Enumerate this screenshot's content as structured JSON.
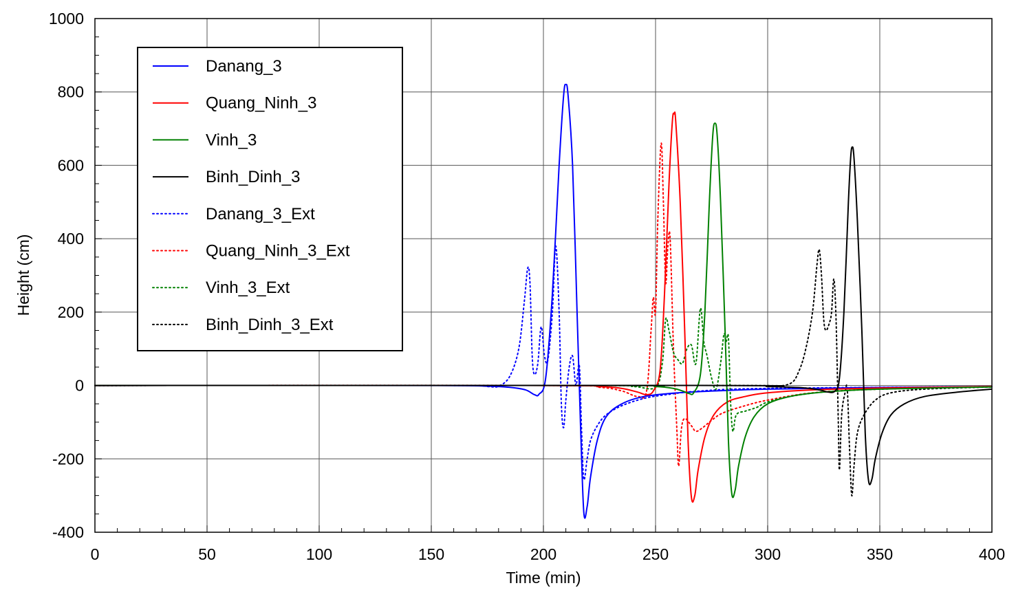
{
  "chart_data": {
    "type": "line",
    "xlabel": "Time (min)",
    "ylabel": "Height (cm)",
    "xlim": [
      0,
      400
    ],
    "ylim": [
      -400,
      1000
    ],
    "xticks": [
      "0",
      "50",
      "100",
      "150",
      "200",
      "250",
      "300",
      "350",
      "400"
    ],
    "yticks": [
      "-400",
      "-200",
      "0",
      "200",
      "400",
      "600",
      "800",
      "1000"
    ],
    "grid": true,
    "legend_position": "top-left",
    "series": [
      {
        "name": "Danang_3",
        "color": "#0000ff",
        "style": "solid",
        "points": [
          [
            0,
            0
          ],
          [
            150,
            0
          ],
          [
            175,
            -2
          ],
          [
            185,
            -5
          ],
          [
            192,
            -12
          ],
          [
            196,
            -25
          ],
          [
            198,
            -24
          ],
          [
            201,
            20
          ],
          [
            204,
            250
          ],
          [
            207,
            600
          ],
          [
            209,
            790
          ],
          [
            210,
            820
          ],
          [
            211,
            790
          ],
          [
            213,
            600
          ],
          [
            215,
            200
          ],
          [
            216.5,
            -100
          ],
          [
            218,
            -345
          ],
          [
            219.5,
            -330
          ],
          [
            221,
            -250
          ],
          [
            224,
            -150
          ],
          [
            228,
            -85
          ],
          [
            235,
            -50
          ],
          [
            245,
            -30
          ],
          [
            260,
            -20
          ],
          [
            280,
            -14
          ],
          [
            300,
            -10
          ],
          [
            340,
            -6
          ],
          [
            400,
            -3
          ]
        ]
      },
      {
        "name": "Quang_Ninh_3",
        "color": "#ff0000",
        "style": "solid",
        "points": [
          [
            0,
            0
          ],
          [
            200,
            0
          ],
          [
            225,
            -3
          ],
          [
            235,
            -8
          ],
          [
            242,
            -18
          ],
          [
            246,
            -25
          ],
          [
            249,
            -15
          ],
          [
            252,
            40
          ],
          [
            254,
            250
          ],
          [
            256,
            550
          ],
          [
            257.5,
            720
          ],
          [
            258.3,
            740
          ],
          [
            259,
            720
          ],
          [
            261,
            500
          ],
          [
            263,
            150
          ],
          [
            264.5,
            -150
          ],
          [
            266,
            -305
          ],
          [
            267.5,
            -300
          ],
          [
            269,
            -230
          ],
          [
            272,
            -140
          ],
          [
            276,
            -80
          ],
          [
            282,
            -45
          ],
          [
            290,
            -30
          ],
          [
            300,
            -20
          ],
          [
            320,
            -12
          ],
          [
            350,
            -7
          ],
          [
            400,
            -3
          ]
        ]
      },
      {
        "name": "Vinh_3",
        "color": "#008000",
        "style": "solid",
        "points": [
          [
            0,
            0
          ],
          [
            230,
            0
          ],
          [
            250,
            -3
          ],
          [
            258,
            -8
          ],
          [
            262,
            -15
          ],
          [
            265,
            -22
          ],
          [
            267,
            -20
          ],
          [
            270,
            30
          ],
          [
            272,
            200
          ],
          [
            274,
            500
          ],
          [
            275.5,
            680
          ],
          [
            276.5,
            715
          ],
          [
            277.5,
            680
          ],
          [
            279,
            500
          ],
          [
            281,
            150
          ],
          [
            282.5,
            -150
          ],
          [
            284,
            -295
          ],
          [
            285.5,
            -285
          ],
          [
            287,
            -220
          ],
          [
            290,
            -140
          ],
          [
            294,
            -85
          ],
          [
            300,
            -50
          ],
          [
            310,
            -30
          ],
          [
            325,
            -18
          ],
          [
            350,
            -10
          ],
          [
            400,
            -4
          ]
        ]
      },
      {
        "name": "Binh_Dinh_3",
        "color": "#000000",
        "style": "solid",
        "points": [
          [
            0,
            0
          ],
          [
            280,
            0
          ],
          [
            300,
            -3
          ],
          [
            315,
            -6
          ],
          [
            323,
            -12
          ],
          [
            327,
            -18
          ],
          [
            330,
            -15
          ],
          [
            332,
            20
          ],
          [
            334,
            200
          ],
          [
            336,
            500
          ],
          [
            337,
            620
          ],
          [
            337.7,
            650
          ],
          [
            338.5,
            620
          ],
          [
            340,
            450
          ],
          [
            342,
            150
          ],
          [
            343.5,
            -130
          ],
          [
            345,
            -260
          ],
          [
            346.5,
            -255
          ],
          [
            348,
            -200
          ],
          [
            351,
            -130
          ],
          [
            355,
            -80
          ],
          [
            361,
            -50
          ],
          [
            370,
            -30
          ],
          [
            385,
            -18
          ],
          [
            400,
            -10
          ]
        ]
      },
      {
        "name": "Danang_3_Ext",
        "color": "#0000ff",
        "style": "dotted",
        "points": [
          [
            0,
            0
          ],
          [
            160,
            0
          ],
          [
            175,
            -3
          ],
          [
            180,
            -2
          ],
          [
            185,
            25
          ],
          [
            189,
            100
          ],
          [
            191.5,
            230
          ],
          [
            193,
            320
          ],
          [
            194,
            280
          ],
          [
            195,
            80
          ],
          [
            196,
            30
          ],
          [
            197.5,
            60
          ],
          [
            199,
            160
          ],
          [
            200.5,
            80
          ],
          [
            202,
            70
          ],
          [
            204,
            200
          ],
          [
            205.5,
            380
          ],
          [
            207,
            200
          ],
          [
            208,
            -50
          ],
          [
            209,
            -115
          ],
          [
            210,
            -40
          ],
          [
            211.5,
            50
          ],
          [
            213,
            80
          ],
          [
            214.5,
            0
          ],
          [
            216,
            55
          ],
          [
            217,
            -120
          ],
          [
            218,
            -255
          ],
          [
            219.5,
            -200
          ],
          [
            221,
            -150
          ],
          [
            224,
            -110
          ],
          [
            228,
            -80
          ],
          [
            235,
            -55
          ],
          [
            245,
            -35
          ],
          [
            255,
            -25
          ],
          [
            270,
            -15
          ],
          [
            300,
            -8
          ],
          [
            400,
            -3
          ]
        ]
      },
      {
        "name": "Quang_Ninh_3_Ext",
        "color": "#ff0000",
        "style": "dotted",
        "points": [
          [
            0,
            0
          ],
          [
            200,
            0
          ],
          [
            225,
            -5
          ],
          [
            235,
            -15
          ],
          [
            242,
            -30
          ],
          [
            246,
            -15
          ],
          [
            248,
            150
          ],
          [
            249,
            240
          ],
          [
            250,
            200
          ],
          [
            251,
            450
          ],
          [
            252.5,
            660
          ],
          [
            253.5,
            500
          ],
          [
            254.5,
            280
          ],
          [
            255.5,
            380
          ],
          [
            256.5,
            400
          ],
          [
            258,
            100
          ],
          [
            259.5,
            -120
          ],
          [
            260.3,
            -220
          ],
          [
            261.5,
            -120
          ],
          [
            263,
            -90
          ],
          [
            266,
            -110
          ],
          [
            268,
            -125
          ],
          [
            271,
            -115
          ],
          [
            275,
            -95
          ],
          [
            280,
            -75
          ],
          [
            290,
            -55
          ],
          [
            300,
            -40
          ],
          [
            320,
            -20
          ],
          [
            350,
            -10
          ],
          [
            400,
            -4
          ]
        ]
      },
      {
        "name": "Vinh_3_Ext",
        "color": "#008000",
        "style": "dotted",
        "points": [
          [
            0,
            0
          ],
          [
            220,
            0
          ],
          [
            240,
            -3
          ],
          [
            250,
            -5
          ],
          [
            253,
            60
          ],
          [
            254.5,
            180
          ],
          [
            256,
            150
          ],
          [
            258,
            90
          ],
          [
            260,
            70
          ],
          [
            262,
            60
          ],
          [
            264,
            100
          ],
          [
            266,
            110
          ],
          [
            268,
            60
          ],
          [
            270,
            210
          ],
          [
            271.5,
            120
          ],
          [
            273,
            80
          ],
          [
            275,
            20
          ],
          [
            277,
            -10
          ],
          [
            279,
            60
          ],
          [
            280.5,
            140
          ],
          [
            281.5,
            120
          ],
          [
            282.5,
            130
          ],
          [
            283.5,
            -50
          ],
          [
            284.5,
            -125
          ],
          [
            286,
            -80
          ],
          [
            290,
            -70
          ],
          [
            295,
            -60
          ],
          [
            300,
            -45
          ],
          [
            310,
            -30
          ],
          [
            325,
            -18
          ],
          [
            350,
            -10
          ],
          [
            400,
            -4
          ]
        ]
      },
      {
        "name": "Binh_Dinh_3_Ext",
        "color": "#000000",
        "style": "dotted",
        "points": [
          [
            0,
            0
          ],
          [
            280,
            0
          ],
          [
            300,
            -2
          ],
          [
            310,
            5
          ],
          [
            314,
            40
          ],
          [
            317,
            100
          ],
          [
            320,
            200
          ],
          [
            322,
            330
          ],
          [
            323,
            370
          ],
          [
            324,
            300
          ],
          [
            325,
            180
          ],
          [
            326,
            150
          ],
          [
            327.5,
            170
          ],
          [
            328.5,
            200
          ],
          [
            329.5,
            290
          ],
          [
            330.5,
            180
          ],
          [
            331.5,
            -100
          ],
          [
            332,
            -230
          ],
          [
            333,
            -80
          ],
          [
            334.5,
            -20
          ],
          [
            335.5,
            -10
          ],
          [
            336.5,
            -170
          ],
          [
            337.5,
            -300
          ],
          [
            338.5,
            -220
          ],
          [
            340,
            -130
          ],
          [
            343,
            -80
          ],
          [
            348,
            -40
          ],
          [
            355,
            -20
          ],
          [
            370,
            -10
          ],
          [
            400,
            -4
          ]
        ]
      }
    ]
  }
}
